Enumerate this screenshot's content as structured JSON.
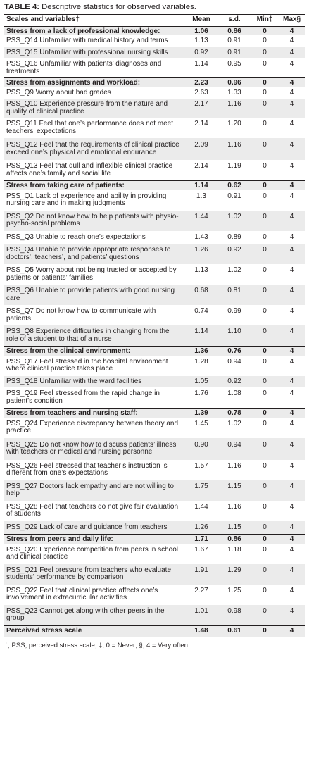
{
  "table": {
    "caption_label": "TABLE 4:",
    "caption_text": " Descriptive statistics for observed variables.",
    "headers": [
      "Scales and variables†",
      "Mean",
      "s.d.",
      "Min‡",
      "Max§"
    ],
    "rows": [
      {
        "kind": "group",
        "label": "Stress from a lack of professional knowledge:",
        "mean": "1.06",
        "sd": "0.86",
        "min": "0",
        "max": "4"
      },
      {
        "kind": "item",
        "label": "PSS_Q14 Unfamiliar with medical history and terms",
        "mean": "1.13",
        "sd": "0.91",
        "min": "0",
        "max": "4"
      },
      {
        "kind": "item",
        "label": "PSS_Q15 Unfamiliar with professional nursing skills",
        "mean": "0.92",
        "sd": "0.91",
        "min": "0",
        "max": "4"
      },
      {
        "kind": "item",
        "label": "PSS_Q16 Unfamiliar with patients’ diagnoses and treatments",
        "mean": "1.14",
        "sd": "0.95",
        "min": "0",
        "max": "4"
      },
      {
        "kind": "group",
        "label": "Stress from assignments and workload:",
        "mean": "2.23",
        "sd": "0.96",
        "min": "0",
        "max": "4"
      },
      {
        "kind": "item",
        "label": "PSS_Q9 Worry about bad grades",
        "mean": "2.63",
        "sd": "1.33",
        "min": "0",
        "max": "4"
      },
      {
        "kind": "item",
        "label": "PSS_Q10 Experience pressure from the nature and quality of clinical practice",
        "mean": "2.17",
        "sd": "1.16",
        "min": "0",
        "max": "4"
      },
      {
        "kind": "item",
        "label": "PSS_Q11 Feel that one’s performance does not meet teachers’ expectations",
        "mean": "2.14",
        "sd": "1.20",
        "min": "0",
        "max": "4"
      },
      {
        "kind": "item",
        "label": "PSS_Q12 Feel that the requirements of clinical practice exceed one’s physical and  emotional endurance",
        "mean": "2.09",
        "sd": "1.16",
        "min": "0",
        "max": "4"
      },
      {
        "kind": "item",
        "label": "PSS_Q13 Feel that dull and inflexible clinical practice affects one’s family and social life",
        "mean": "2.14",
        "sd": "1.19",
        "min": "0",
        "max": "4"
      },
      {
        "kind": "group",
        "label": "Stress from taking care of patients:",
        "mean": "1.14",
        "sd": "0.62",
        "min": "0",
        "max": "4"
      },
      {
        "kind": "item",
        "label": "PSS_Q1 Lack of experience and ability in providing nursing care and in making judgments",
        "mean": "1.3",
        "sd": "0.91",
        "min": "0",
        "max": "4"
      },
      {
        "kind": "item",
        "label": "PSS_Q2 Do not know how to help patients with physio-psycho-social problems",
        "mean": "1.44",
        "sd": "1.02",
        "min": "0",
        "max": "4"
      },
      {
        "kind": "item",
        "label": "PSS_Q3 Unable to reach one’s expectations",
        "mean": "1.43",
        "sd": "0.89",
        "min": "0",
        "max": "4"
      },
      {
        "kind": "item",
        "label": "PSS_Q4 Unable to provide appropriate responses to doctors’, teachers’, and patients’ questions",
        "mean": "1.26",
        "sd": "0.92",
        "min": "0",
        "max": "4"
      },
      {
        "kind": "item",
        "label": "PSS_Q5 Worry about not being trusted or accepted by patients or patients’ families",
        "mean": "1.13",
        "sd": "1.02",
        "min": "0",
        "max": "4"
      },
      {
        "kind": "item",
        "label": "PSS_Q6 Unable to provide patients with good nursing care",
        "mean": "0.68",
        "sd": "0.81",
        "min": "0",
        "max": "4"
      },
      {
        "kind": "item",
        "label": "PSS_Q7 Do not know how to communicate with patients",
        "mean": "0.74",
        "sd": "0.99",
        "min": "0",
        "max": "4"
      },
      {
        "kind": "item",
        "label": "PSS_Q8 Experience difficulties in changing from the role of a student to that of a nurse",
        "mean": "1.14",
        "sd": "1.10",
        "min": "0",
        "max": "4"
      },
      {
        "kind": "group",
        "label": "Stress from the clinical environment:",
        "mean": "1.36",
        "sd": "0.76",
        "min": "0",
        "max": "4"
      },
      {
        "kind": "item",
        "label": "PSS_Q17 Feel stressed in the hospital environment where clinical practice takes place",
        "mean": "1.28",
        "sd": "0.94",
        "min": "0",
        "max": "4"
      },
      {
        "kind": "item",
        "label": "PSS_Q18 Unfamiliar with the ward facilities",
        "mean": "1.05",
        "sd": "0.92",
        "min": "0",
        "max": "4"
      },
      {
        "kind": "item",
        "label": "PSS_Q19 Feel stressed from the rapid change in patient’s condition",
        "mean": "1.76",
        "sd": "1.08",
        "min": "0",
        "max": "4"
      },
      {
        "kind": "group",
        "label": "Stress from teachers and nursing staff:",
        "mean": "1.39",
        "sd": "0.78",
        "min": "0",
        "max": "4"
      },
      {
        "kind": "item",
        "label": "PSS_Q24 Experience discrepancy between theory and practice",
        "mean": "1.45",
        "sd": "1.02",
        "min": "0",
        "max": "4"
      },
      {
        "kind": "item",
        "label": "PSS_Q25 Do not know how to discuss patients’ illness with teachers or medical and nursing personnel",
        "mean": "0.90",
        "sd": "0.94",
        "min": "0",
        "max": "4"
      },
      {
        "kind": "item",
        "label": "PSS_Q26 Feel stressed that teacher’s instruction is different from one’s expectations",
        "mean": "1.57",
        "sd": "1.16",
        "min": "0",
        "max": "4"
      },
      {
        "kind": "item",
        "label": "PSS_Q27 Doctors lack empathy and are not willing to help",
        "mean": "1.75",
        "sd": "1.15",
        "min": "0",
        "max": "4"
      },
      {
        "kind": "item",
        "label": "PSS_Q28 Feel that teachers do not give fair evaluation of students",
        "mean": "1.44",
        "sd": "1.16",
        "min": "0",
        "max": "4"
      },
      {
        "kind": "item",
        "label": "PSS_Q29 Lack of care and guidance from teachers",
        "mean": "1.26",
        "sd": "1.15",
        "min": "0",
        "max": "4"
      },
      {
        "kind": "group",
        "label": "Stress from peers and daily life:",
        "mean": "1.71",
        "sd": "0.86",
        "min": "0",
        "max": "4"
      },
      {
        "kind": "item",
        "label": "PSS_Q20 Experience competition from peers in school and clinical practice",
        "mean": "1.67",
        "sd": "1.18",
        "min": "0",
        "max": "4"
      },
      {
        "kind": "item",
        "label": "PSS_Q21 Feel pressure from teachers who evaluate students’ performance by comparison",
        "mean": "1.91",
        "sd": "1.29",
        "min": "0",
        "max": "4"
      },
      {
        "kind": "item",
        "label": "PSS_Q22 Feel that clinical practice affects one’s involvement in extracurricular activities",
        "mean": "2.27",
        "sd": "1.25",
        "min": "0",
        "max": "4"
      },
      {
        "kind": "item",
        "label": "PSS_Q23 Cannot get along with other peers in the group",
        "mean": "1.01",
        "sd": "0.98",
        "min": "0",
        "max": "4"
      },
      {
        "kind": "total",
        "label": "Perceived stress scale",
        "mean": "1.48",
        "sd": "0.61",
        "min": "0",
        "max": "4"
      }
    ],
    "footnote": "†, PSS, perceived stress scale; ‡, 0 = Never; §, 4 = Very often."
  }
}
